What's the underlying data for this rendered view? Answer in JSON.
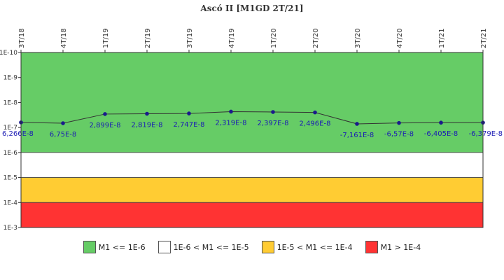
{
  "chart_data": {
    "type": "line",
    "title": "Ascó II [M1GD 2T/21]",
    "xlabel": "",
    "ylabel": "",
    "categories": [
      "3T/18",
      "4T/18",
      "1T/19",
      "2T/19",
      "3T/19",
      "4T/19",
      "1T/20",
      "2T/20",
      "3T/20",
      "4T/20",
      "1T/21",
      "2T/21"
    ],
    "values": [
      6.266e-08,
      6.75e-08,
      2.899e-08,
      2.819e-08,
      2.747e-08,
      2.319e-08,
      2.397e-08,
      2.496e-08,
      -7.161e-08,
      -6.57e-08,
      -6.405e-08,
      -6.379e-08
    ],
    "point_labels": [
      "6,266E-8",
      "6,75E-8",
      "2,899E-8",
      "2,819E-8",
      "2,747E-8",
      "2,319E-8",
      "2,397E-8",
      "2,496E-8",
      "-7,161E-8",
      "-6,57E-8",
      "-6,405E-8",
      "-6,379E-8"
    ],
    "y_scale": "log",
    "y_axis_inverted": true,
    "ylim": [
      1e-10,
      0.001
    ],
    "y_ticks": [
      "1E-10",
      "1E-9",
      "1E-8",
      "1E-7",
      "1E-6",
      "1E-5",
      "1E-4",
      "1E-3"
    ],
    "grid": false,
    "bands": [
      {
        "from": 1e-10,
        "to": 1e-06,
        "color": "#66cc66",
        "label": "M1 <= 1E-6"
      },
      {
        "from": 1e-06,
        "to": 1e-05,
        "color": "#ffffff",
        "label": "1E-6 < M1 <= 1E-5"
      },
      {
        "from": 1e-05,
        "to": 0.0001,
        "color": "#ffcc33",
        "label": "1E-5 < M1 <= 1E-4"
      },
      {
        "from": 0.0001,
        "to": 0.001,
        "color": "#ff3333",
        "label": "M1 > 1E-4"
      }
    ],
    "line_color": "#333333",
    "point_color": "#1a1a8c",
    "label_color": "#1b1bb4",
    "legend_position": "bottom"
  }
}
